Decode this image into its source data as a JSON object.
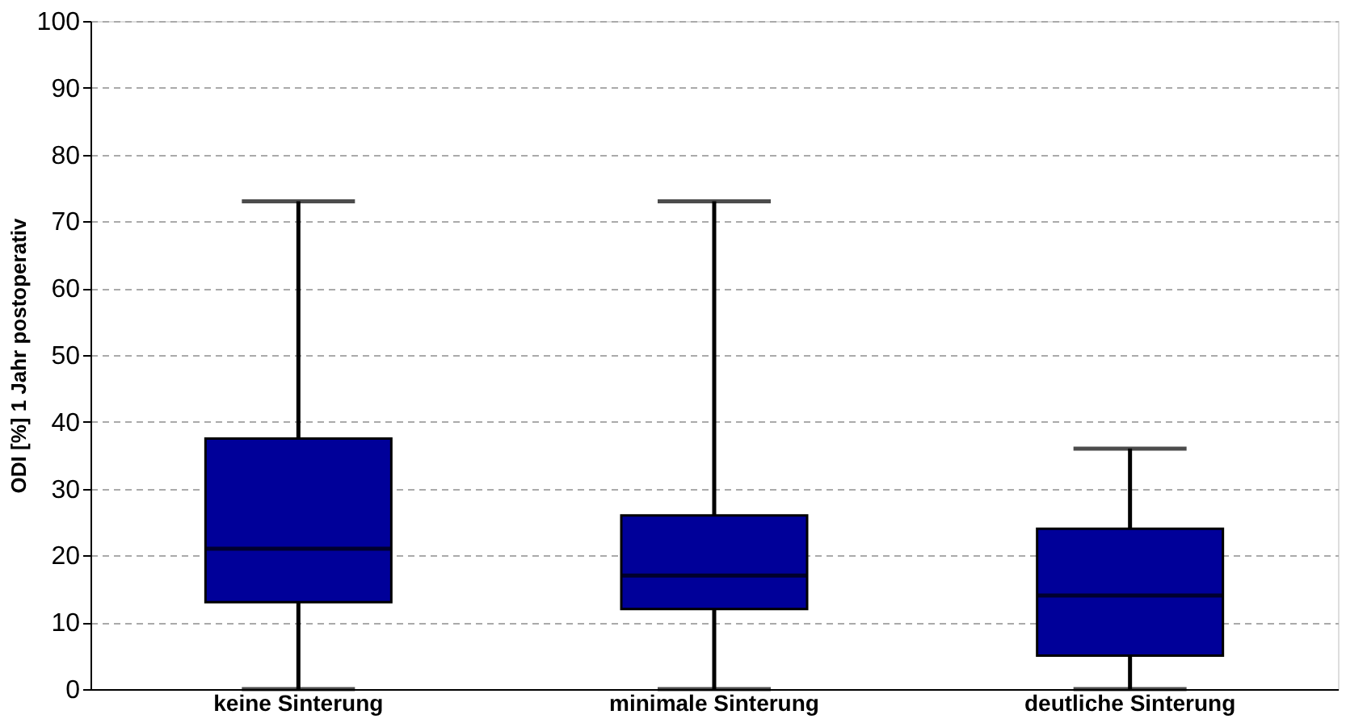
{
  "chart_data": {
    "type": "box",
    "ylabel": "ODI [%] 1 Jahr postoperativ",
    "categories": [
      "keine Sinterung",
      "minimale Sinterung",
      "deutliche Sinterung"
    ],
    "boxes": [
      {
        "low": 0,
        "q1": 13,
        "median": 21,
        "q3": 37.5,
        "high": 73
      },
      {
        "low": 0,
        "q1": 12,
        "median": 17,
        "q3": 26,
        "high": 73
      },
      {
        "low": 0,
        "q1": 5,
        "median": 14,
        "q3": 24,
        "high": 36
      }
    ],
    "color": "#000099",
    "ylim": [
      0,
      100
    ],
    "yticks": [
      0,
      10,
      20,
      30,
      40,
      50,
      60,
      70,
      80,
      90,
      100
    ],
    "grid": "y"
  }
}
